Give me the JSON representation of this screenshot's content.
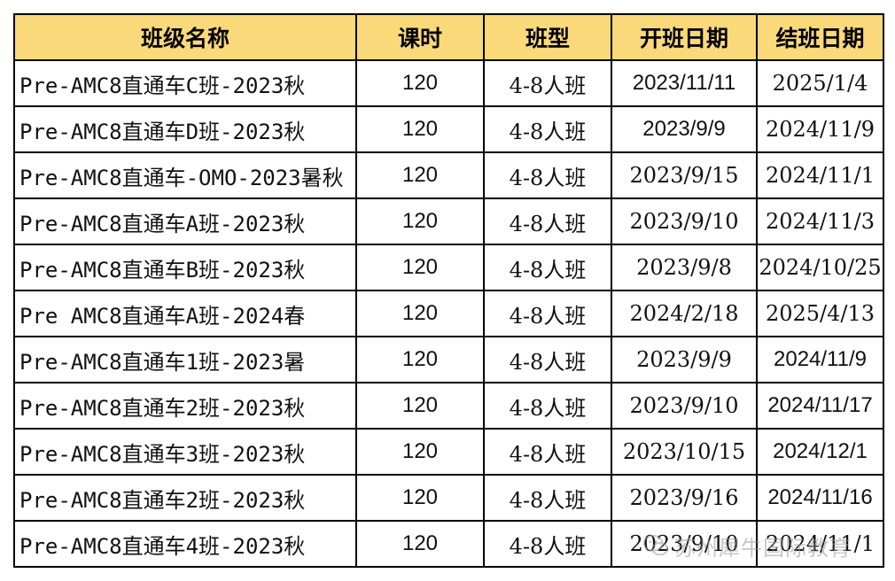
{
  "table": {
    "headers": [
      "班级名称",
      "课时",
      "班型",
      "开班日期",
      "结班日期"
    ],
    "rows": [
      {
        "name": "Pre-AMC8直通车C班-2023秋",
        "hours": "120",
        "type": "4-8人班",
        "start": "2023/11/11",
        "end": "2025/1/4",
        "start_style": "sans",
        "end_style": "serif"
      },
      {
        "name": "Pre-AMC8直通车D班-2023秋",
        "hours": "120",
        "type": "4-8人班",
        "start": "2023/9/9",
        "end": "2024/11/9",
        "start_style": "sans",
        "end_style": "serif"
      },
      {
        "name": "Pre-AMC8直通车-OMO-2023暑秋",
        "hours": "120",
        "type": "4-8人班",
        "start": "2023/9/15",
        "end": "2024/11/1",
        "start_style": "serif",
        "end_style": "serif"
      },
      {
        "name": "Pre-AMC8直通车A班-2023秋",
        "hours": "120",
        "type": "4-8人班",
        "start": "2023/9/10",
        "end": "2024/11/3",
        "start_style": "serif",
        "end_style": "serif"
      },
      {
        "name": "Pre-AMC8直通车B班-2023秋",
        "hours": "120",
        "type": "4-8人班",
        "start": "2023/9/8",
        "end": "2024/10/25",
        "start_style": "serif",
        "end_style": "serif"
      },
      {
        "name": "Pre AMC8直通车A班-2024春",
        "hours": "120",
        "type": "4-8人班",
        "start": "2024/2/18",
        "end": "2025/4/13",
        "start_style": "serif",
        "end_style": "serif"
      },
      {
        "name": "Pre-AMC8直通车1班-2023暑",
        "hours": "120",
        "type": "4-8人班",
        "start": "2023/9/9",
        "end": "2024/11/9",
        "start_style": "serif",
        "end_style": "sans"
      },
      {
        "name": "Pre-AMC8直通车2班-2023秋",
        "hours": "120",
        "type": "4-8人班",
        "start": "2023/9/10",
        "end": "2024/11/17",
        "start_style": "serif",
        "end_style": "sans"
      },
      {
        "name": "Pre-AMC8直通车3班-2023秋",
        "hours": "120",
        "type": "4-8人班",
        "start": "2023/10/15",
        "end": "2024/12/1",
        "start_style": "serif",
        "end_style": "sans"
      },
      {
        "name": "Pre-AMC8直通车2班-2023秋",
        "hours": "120",
        "type": "4-8人班",
        "start": "2023/9/16",
        "end": "2024/11/16",
        "start_style": "serif",
        "end_style": "sans"
      },
      {
        "name": "Pre-AMC8直通车4班-2023秋",
        "hours": "120",
        "type": "4-8人班",
        "start": "2023/9/10",
        "end": "2024/11/1",
        "start_style": "serif",
        "end_style": "serif"
      }
    ]
  },
  "watermark": {
    "text": "苏州犀牛国际教育",
    "icon": "wechat-icon"
  },
  "colors": {
    "header_bg": "#fad97a",
    "border": "#000000"
  }
}
